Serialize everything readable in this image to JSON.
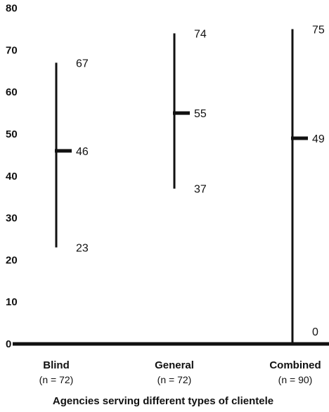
{
  "chart_data": {
    "type": "range",
    "xlabel": "Agencies serving different types of clientele",
    "ylim": [
      0,
      80
    ],
    "yticks": [
      "0",
      "10",
      "20",
      "30",
      "40",
      "50",
      "60",
      "70",
      "80"
    ],
    "grid": false,
    "groups": [
      {
        "category": "Blind",
        "n_label": "(n = 72)",
        "low": 23,
        "mid": 46,
        "high": 67,
        "low_label": "23",
        "mid_label": "46",
        "high_label": "67"
      },
      {
        "category": "General",
        "n_label": "(n = 72)",
        "low": 37,
        "mid": 55,
        "high": 74,
        "low_label": "37",
        "mid_label": "55",
        "high_label": "74"
      },
      {
        "category": "Combined",
        "n_label": "(n = 90)",
        "low": 0,
        "mid": 49,
        "high": 75,
        "low_label": "0",
        "mid_label": "49",
        "high_label": "75"
      }
    ]
  }
}
